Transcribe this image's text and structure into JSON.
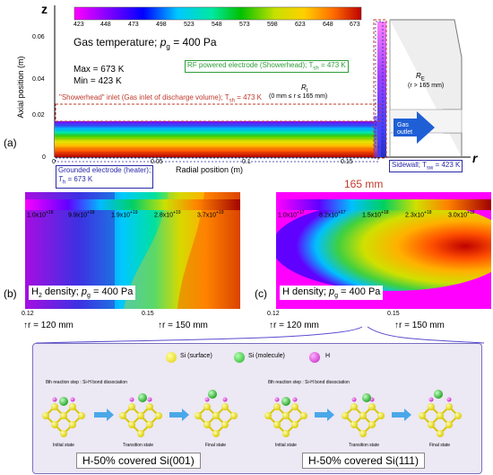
{
  "panel_a": {
    "axis_z": "z",
    "axis_r": "r",
    "y_label": "Axial position (m)",
    "x_label": "Radial position (m)",
    "y_ticks": [
      "0.06",
      "0.04",
      "0.02",
      "0"
    ],
    "x_ticks": [
      "0",
      "0.05",
      "0.1",
      "0.15"
    ],
    "colorbar_ticks": [
      "423",
      "448",
      "473",
      "498",
      "523",
      "548",
      "573",
      "598",
      "623",
      "648",
      "673"
    ],
    "title_prefix": "Gas temperature; ",
    "title_var": "p",
    "title_sub": "g",
    "title_suffix": " = 400 Pa",
    "max_label": "Max = 673 K",
    "min_label": "Min = 423 K",
    "rf_label": "RF powered electrode (Showerhead); T",
    "rf_sub": "sh",
    "rf_suffix": " = 473 K",
    "inlet_label": "\"Showerhead\" inlet (Gas inlet of discharge volume); T",
    "inlet_sub": "sh",
    "inlet_suffix": " = 473 K",
    "ri_label": "R",
    "ri_sub": "I",
    "ri_range": "(0 mm ≤ r ≤ 165 mm)",
    "re_label": "R",
    "re_sub": "E",
    "re_range": "(r > 165 mm)",
    "gas_outlet": "Gas outlet",
    "panel_letter": "(a)",
    "grounded_label": "Grounded electrode (heater);",
    "grounded_t": "T",
    "grounded_sub": "h",
    "grounded_suffix": " = 673 K",
    "sidewall_label": "Sidewall; T",
    "sidewall_sub": "sw",
    "sidewall_suffix": " = 423 K",
    "marker_165": "165 mm"
  },
  "panel_b": {
    "letter": "(b)",
    "colorbar_ticks": [
      "1.0x10+18",
      "9.9x10+18",
      "1.9x10+19",
      "2.8x10+19",
      "3.7x10+19"
    ],
    "title_pre": "H",
    "title_sub": "2",
    "title_post": " density; ",
    "title_var": "p",
    "title_var_sub": "g",
    "title_suffix": " = 400 Pa",
    "x_ticks": [
      "0.12",
      "0.15"
    ],
    "r120": "r = 120 mm",
    "r150": "r = 150 mm"
  },
  "panel_c": {
    "letter": "(c)",
    "colorbar_ticks": [
      "1.0x10+17",
      "8.2x10+17",
      "1.5x10+18",
      "2.3x10+18",
      "3.0x10+18"
    ],
    "title_pre": "H density; ",
    "title_var": "p",
    "title_var_sub": "g",
    "title_suffix": " = 400 Pa",
    "x_ticks": [
      "0.12",
      "0.15"
    ],
    "r120": "r = 120 mm",
    "r150": "r = 150 mm"
  },
  "bottom": {
    "legend_si_surface": "Si (surface)",
    "legend_si_molecule": "Si (molecule)",
    "legend_h": "H",
    "step_left": "8th reaction step : Si-H bond dissociation",
    "step_right": "8th reaction step : Si-H bond dissociation",
    "states": [
      "Initial state",
      "Transition state",
      "Final state"
    ],
    "label_001": "H-50% covered Si(001)",
    "label_111": "H-50% covered Si(111)"
  },
  "colors": {
    "red_label": "#c0392b",
    "green_label": "#2e9e3a",
    "blue_label": "#2a2aa8",
    "arrow_blue": "#1f5fd6"
  }
}
